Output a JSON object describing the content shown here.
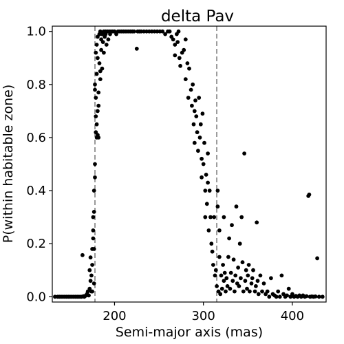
{
  "chart_data": {
    "type": "scatter",
    "title": "delta Pav",
    "xlabel": "Semi-major axis (mas)",
    "ylabel": "P(within habitable zone)",
    "xlim": [
      130,
      438
    ],
    "ylim": [
      -0.02,
      1.02
    ],
    "xticks": [
      200,
      300,
      400
    ],
    "yticks": [
      0.0,
      0.2,
      0.4,
      0.6,
      0.8,
      1.0
    ],
    "xtick_labels": [
      "200",
      "300",
      "400"
    ],
    "ytick_labels": [
      "0.0",
      "0.2",
      "0.4",
      "0.6",
      "0.8",
      "1.0"
    ],
    "grid": false,
    "legend": "none",
    "point_color": "#000000",
    "reference_lines": {
      "x": [
        178,
        315
      ],
      "style": "dashed",
      "color": "#808080"
    },
    "series": [
      {
        "points": [
          [
            133,
            0.0
          ],
          [
            136,
            0.0
          ],
          [
            138,
            0.0
          ],
          [
            140,
            0.0
          ],
          [
            142,
            0.0
          ],
          [
            144,
            0.0
          ],
          [
            146,
            0.0
          ],
          [
            148,
            0.0
          ],
          [
            150,
            0.0
          ],
          [
            152,
            0.0
          ],
          [
            154,
            0.0
          ],
          [
            156,
            0.0
          ],
          [
            158,
            0.0
          ],
          [
            160,
            0.0
          ],
          [
            162,
            0.0
          ],
          [
            163,
            0.0
          ],
          [
            164,
            0.157
          ],
          [
            165,
            0.002
          ],
          [
            166,
            0.0
          ],
          [
            167,
            0.003
          ],
          [
            168,
            0.005
          ],
          [
            169,
            0.01
          ],
          [
            170,
            0.02
          ],
          [
            171,
            0.005
          ],
          [
            172,
            0.1
          ],
          [
            172,
            0.03
          ],
          [
            173,
            0.06
          ],
          [
            173,
            0.148
          ],
          [
            174,
            0.08
          ],
          [
            174,
            0.02
          ],
          [
            175,
            0.12
          ],
          [
            175,
            0.18
          ],
          [
            175,
            0.02
          ],
          [
            176,
            0.22
          ],
          [
            176,
            0.3
          ],
          [
            176,
            0.25
          ],
          [
            177,
            0.32
          ],
          [
            177,
            0.18
          ],
          [
            177,
            0.4
          ],
          [
            177,
            0.05
          ],
          [
            178,
            0.5
          ],
          [
            178,
            0.45
          ],
          [
            178,
            0.78
          ],
          [
            178,
            0.8
          ],
          [
            179,
            0.62
          ],
          [
            179,
            0.68
          ],
          [
            179,
            0.75
          ],
          [
            179,
            0.92
          ],
          [
            180,
            0.65
          ],
          [
            180,
            0.6
          ],
          [
            180,
            0.84
          ],
          [
            180,
            0.95
          ],
          [
            181,
            0.61
          ],
          [
            181,
            0.7
          ],
          [
            181,
            0.9
          ],
          [
            181,
            0.98
          ],
          [
            182,
            0.72
          ],
          [
            182,
            0.77
          ],
          [
            182,
            0.6
          ],
          [
            183,
            0.88
          ],
          [
            183,
            0.99
          ],
          [
            184,
            0.85
          ],
          [
            184,
            0.82
          ],
          [
            184,
            1.0
          ],
          [
            185,
            0.93
          ],
          [
            185,
            0.97
          ],
          [
            186,
            0.99
          ],
          [
            186,
            0.86
          ],
          [
            187,
            0.96
          ],
          [
            188,
            1.0
          ],
          [
            188,
            0.92
          ],
          [
            189,
            0.98
          ],
          [
            190,
            1.0
          ],
          [
            190,
            0.99
          ],
          [
            191,
            0.95
          ],
          [
            192,
            1.0
          ],
          [
            193,
            0.97
          ],
          [
            194,
            1.0
          ],
          [
            195,
            0.99
          ],
          [
            196,
            1.0
          ],
          [
            198,
            1.0
          ],
          [
            200,
            1.0
          ],
          [
            202,
            0.99
          ],
          [
            204,
            1.0
          ],
          [
            206,
            1.0
          ],
          [
            208,
            1.0
          ],
          [
            210,
            1.0
          ],
          [
            212,
            1.0
          ],
          [
            214,
            1.0
          ],
          [
            216,
            1.0
          ],
          [
            218,
            1.0
          ],
          [
            220,
            1.0
          ],
          [
            222,
            1.0
          ],
          [
            225,
            0.935
          ],
          [
            226,
            1.0
          ],
          [
            228,
            1.0
          ],
          [
            230,
            1.0
          ],
          [
            233,
            1.0
          ],
          [
            236,
            1.0
          ],
          [
            239,
            1.0
          ],
          [
            242,
            1.0
          ],
          [
            245,
            1.0
          ],
          [
            248,
            1.0
          ],
          [
            251,
            1.0
          ],
          [
            254,
            1.0
          ],
          [
            257,
            0.99
          ],
          [
            260,
            1.0
          ],
          [
            262,
            1.0
          ],
          [
            264,
            0.98
          ],
          [
            266,
            0.97
          ],
          [
            268,
            0.95
          ],
          [
            268,
            0.91
          ],
          [
            270,
            0.99
          ],
          [
            271,
            0.96
          ],
          [
            272,
            1.0
          ],
          [
            273,
            0.9
          ],
          [
            274,
            0.87
          ],
          [
            276,
            0.92
          ],
          [
            278,
            0.93
          ],
          [
            280,
            0.97
          ],
          [
            280,
            0.82
          ],
          [
            282,
            0.88
          ],
          [
            283,
            0.75
          ],
          [
            284,
            0.86
          ],
          [
            286,
            0.78
          ],
          [
            287,
            0.72
          ],
          [
            288,
            0.8
          ],
          [
            289,
            0.65
          ],
          [
            290,
            0.7
          ],
          [
            290,
            0.58
          ],
          [
            291,
            0.74
          ],
          [
            292,
            0.68
          ],
          [
            293,
            0.62
          ],
          [
            294,
            0.55
          ],
          [
            295,
            0.75
          ],
          [
            296,
            0.6
          ],
          [
            297,
            0.65
          ],
          [
            298,
            0.52
          ],
          [
            298,
            0.45
          ],
          [
            299,
            0.69
          ],
          [
            300,
            0.5
          ],
          [
            301,
            0.58
          ],
          [
            302,
            0.4
          ],
          [
            302,
            0.3
          ],
          [
            303,
            0.46
          ],
          [
            304,
            0.35
          ],
          [
            305,
            0.43
          ],
          [
            305,
            0.54
          ],
          [
            306,
            0.25
          ],
          [
            307,
            0.4
          ],
          [
            308,
            0.3
          ],
          [
            309,
            0.2
          ],
          [
            310,
            0.17
          ],
          [
            311,
            0.12
          ],
          [
            312,
            0.3
          ],
          [
            313,
            0.08
          ],
          [
            314,
            0.1
          ],
          [
            315,
            0.04
          ],
          [
            316,
            0.4
          ],
          [
            316,
            0.34
          ],
          [
            317,
            0.02
          ],
          [
            318,
            0.25
          ],
          [
            318,
            0.15
          ],
          [
            319,
            0.01
          ],
          [
            320,
            0.08
          ],
          [
            321,
            0.03
          ],
          [
            322,
            0.12
          ],
          [
            323,
            0.3
          ],
          [
            323,
            0.06
          ],
          [
            324,
            0.09
          ],
          [
            325,
            0.02
          ],
          [
            326,
            0.07
          ],
          [
            327,
            0.04
          ],
          [
            328,
            0.15
          ],
          [
            329,
            0.22
          ],
          [
            330,
            0.03
          ],
          [
            331,
            0.09
          ],
          [
            332,
            0.27
          ],
          [
            333,
            0.06
          ],
          [
            334,
            0.14
          ],
          [
            335,
            0.02
          ],
          [
            336,
            0.08
          ],
          [
            337,
            0.34
          ],
          [
            338,
            0.05
          ],
          [
            339,
            0.11
          ],
          [
            340,
            0.04
          ],
          [
            341,
            0.2
          ],
          [
            342,
            0.07
          ],
          [
            343,
            0.3
          ],
          [
            344,
            0.13
          ],
          [
            345,
            0.02
          ],
          [
            346,
            0.54
          ],
          [
            347,
            0.06
          ],
          [
            348,
            0.1
          ],
          [
            349,
            0.03
          ],
          [
            350,
            0.08
          ],
          [
            351,
            0.12
          ],
          [
            352,
            0.02
          ],
          [
            354,
            0.05
          ],
          [
            355,
            0.07
          ],
          [
            356,
            0.1
          ],
          [
            358,
            0.02
          ],
          [
            359,
            0.04
          ],
          [
            360,
            0.28
          ],
          [
            361,
            0.06
          ],
          [
            362,
            0.01
          ],
          [
            364,
            0.08
          ],
          [
            366,
            0.02
          ],
          [
            368,
            0.05
          ],
          [
            370,
            0.01
          ],
          [
            372,
            0.02
          ],
          [
            374,
            0.0
          ],
          [
            376,
            0.07
          ],
          [
            378,
            0.01
          ],
          [
            380,
            0.005
          ],
          [
            382,
            0.0
          ],
          [
            384,
            0.02
          ],
          [
            386,
            0.0
          ],
          [
            388,
            0.08
          ],
          [
            390,
            0.01
          ],
          [
            392,
            0.0
          ],
          [
            394,
            0.005
          ],
          [
            396,
            0.03
          ],
          [
            398,
            0.0
          ],
          [
            400,
            0.01
          ],
          [
            402,
            0.0
          ],
          [
            404,
            0.003
          ],
          [
            406,
            0.0
          ],
          [
            408,
            0.005
          ],
          [
            410,
            0.0
          ],
          [
            412,
            0.005
          ],
          [
            414,
            0.0
          ],
          [
            416,
            0.002
          ],
          [
            418,
            0.38
          ],
          [
            419,
            0.385
          ],
          [
            420,
            0.0
          ],
          [
            422,
            0.001
          ],
          [
            424,
            0.0
          ],
          [
            426,
            0.001
          ],
          [
            428,
            0.145
          ],
          [
            430,
            0.0
          ],
          [
            434,
            0.0
          ]
        ]
      }
    ]
  }
}
